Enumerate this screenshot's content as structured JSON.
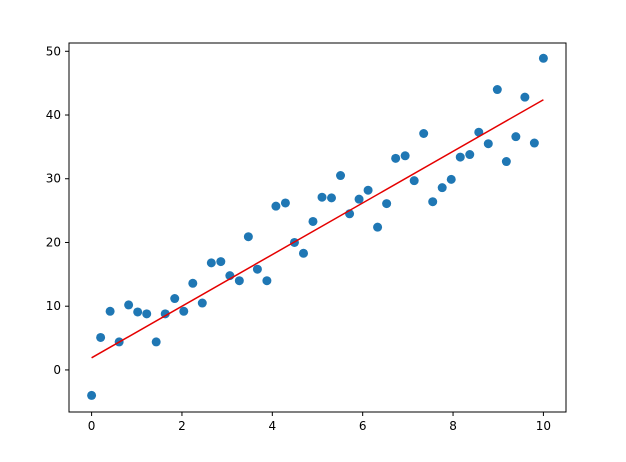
{
  "chart_data": {
    "type": "scatter",
    "title": "",
    "xlabel": "",
    "ylabel": "",
    "xlim": [
      -0.5,
      10.5
    ],
    "ylim": [
      -6.6,
      51.3
    ],
    "x_ticks": [
      0,
      2,
      4,
      6,
      8,
      10
    ],
    "y_ticks": [
      0,
      10,
      20,
      30,
      40,
      50
    ],
    "grid": false,
    "legend": "none",
    "series": [
      {
        "type": "scatter",
        "color": "#1f77b4",
        "x": [
          0.0,
          0.2,
          0.41,
          0.61,
          0.82,
          1.02,
          1.22,
          1.43,
          1.63,
          1.84,
          2.04,
          2.24,
          2.45,
          2.65,
          2.86,
          3.06,
          3.27,
          3.47,
          3.67,
          3.88,
          4.08,
          4.29,
          4.49,
          4.69,
          4.9,
          5.1,
          5.31,
          5.51,
          5.71,
          5.92,
          6.12,
          6.33,
          6.53,
          6.73,
          6.94,
          7.14,
          7.35,
          7.55,
          7.76,
          7.96,
          8.16,
          8.37,
          8.57,
          8.78,
          8.98,
          9.18,
          9.39,
          9.59,
          9.8,
          10.0
        ],
        "y": [
          -4.0,
          5.1,
          9.2,
          4.4,
          10.2,
          9.1,
          8.8,
          4.4,
          8.8,
          11.2,
          9.2,
          13.6,
          10.5,
          16.8,
          17.0,
          14.8,
          14.0,
          20.9,
          15.8,
          14.0,
          25.7,
          26.2,
          20.0,
          18.3,
          23.3,
          27.1,
          27.0,
          30.5,
          24.5,
          26.8,
          28.2,
          22.4,
          26.1,
          33.2,
          33.6,
          29.7,
          37.1,
          26.4,
          28.6,
          29.9,
          33.4,
          33.8,
          37.3,
          35.5,
          44.0,
          32.7,
          36.6,
          42.8,
          35.6,
          48.9
        ]
      },
      {
        "type": "line",
        "color": "#e50000",
        "x": [
          0,
          10
        ],
        "y": [
          1.9,
          42.4
        ]
      }
    ]
  }
}
